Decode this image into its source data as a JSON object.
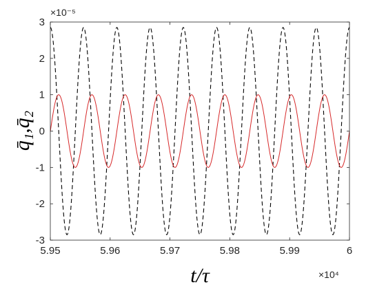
{
  "chart_data": {
    "type": "line",
    "title": "",
    "xlabel": "t/τ",
    "ylabel": "q̄₁,q̄₂",
    "x_exponent_label": "×10⁴",
    "y_exponent_label": "×10⁻⁵",
    "xlim": [
      5.95,
      6.0
    ],
    "ylim": [
      -3,
      3
    ],
    "x_ticks": [
      5.95,
      5.96,
      5.97,
      5.98,
      5.99,
      6.0
    ],
    "x_tick_labels": [
      "5.95",
      "5.96",
      "5.97",
      "5.98",
      "5.99",
      "6"
    ],
    "y_ticks": [
      -3,
      -2,
      -1,
      0,
      1,
      2,
      3
    ],
    "y_tick_labels": [
      "-3",
      "-2",
      "-1",
      "0",
      "1",
      "2",
      "3"
    ],
    "grid": false,
    "legend": "none",
    "colors": {
      "axes": "#262626",
      "series_dashed": "#000000",
      "series_solid": "#d62728"
    },
    "series": [
      {
        "style": "dashed",
        "color": "#000000",
        "form": "sinusoid",
        "amplitude": 2.85,
        "period": 0.005555,
        "phase_deg": 90,
        "reference_peak_x": 5.9514
      },
      {
        "style": "solid",
        "color": "#d62728",
        "form": "sinusoid",
        "amplitude": 1.0,
        "period": 0.005555,
        "phase_deg": 0,
        "reference_peak_x": 5.9514
      }
    ]
  }
}
